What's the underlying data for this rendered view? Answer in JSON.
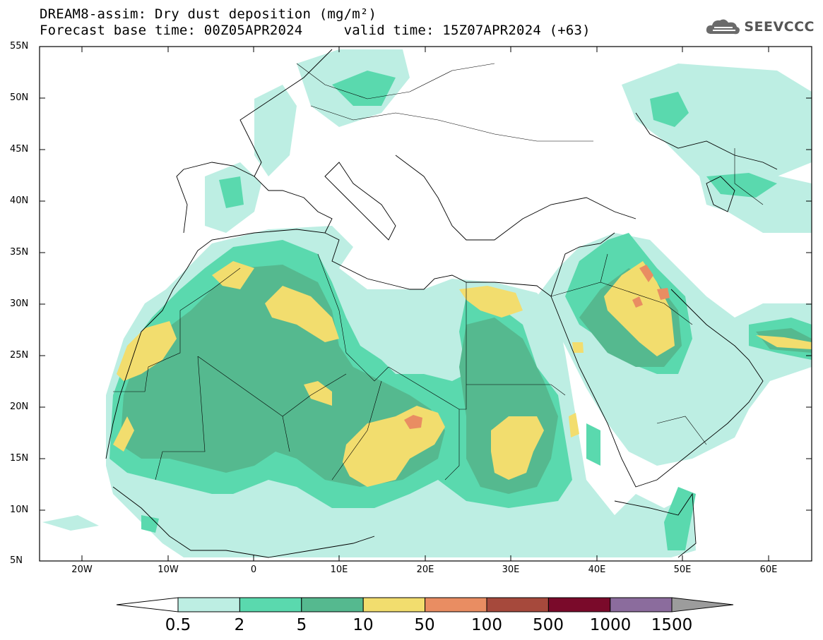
{
  "title_line1": "DREAM8-assim: Dry dust deposition (mg/m²)",
  "title_line2": "Forecast base time: 00Z05APR2024     valid time: 15Z07APR2024 (+63)",
  "logo_text": "SEEVCCC",
  "lat_labels": [
    "55N",
    "50N",
    "45N",
    "40N",
    "35N",
    "30N",
    "25N",
    "20N",
    "15N",
    "10N",
    "5N"
  ],
  "lon_labels": [
    "20W",
    "10W",
    "0",
    "10E",
    "20E",
    "30E",
    "40E",
    "50E",
    "60E"
  ],
  "colorbar": {
    "labels": [
      "0.5",
      "2",
      "5",
      "10",
      "50",
      "100",
      "500",
      "1000",
      "1500"
    ],
    "colors": [
      "#bdeee3",
      "#5ad9ae",
      "#55b98f",
      "#f2dd6e",
      "#e98d62",
      "#a6493c",
      "#7a0a2a",
      "#8b6c9d",
      "#9c9c9c"
    ]
  },
  "map_data": {
    "domain": {
      "lon": [
        -25,
        65
      ],
      "lat": [
        5,
        55
      ]
    },
    "field": "Dry dust deposition",
    "units": "mg/m²"
  }
}
